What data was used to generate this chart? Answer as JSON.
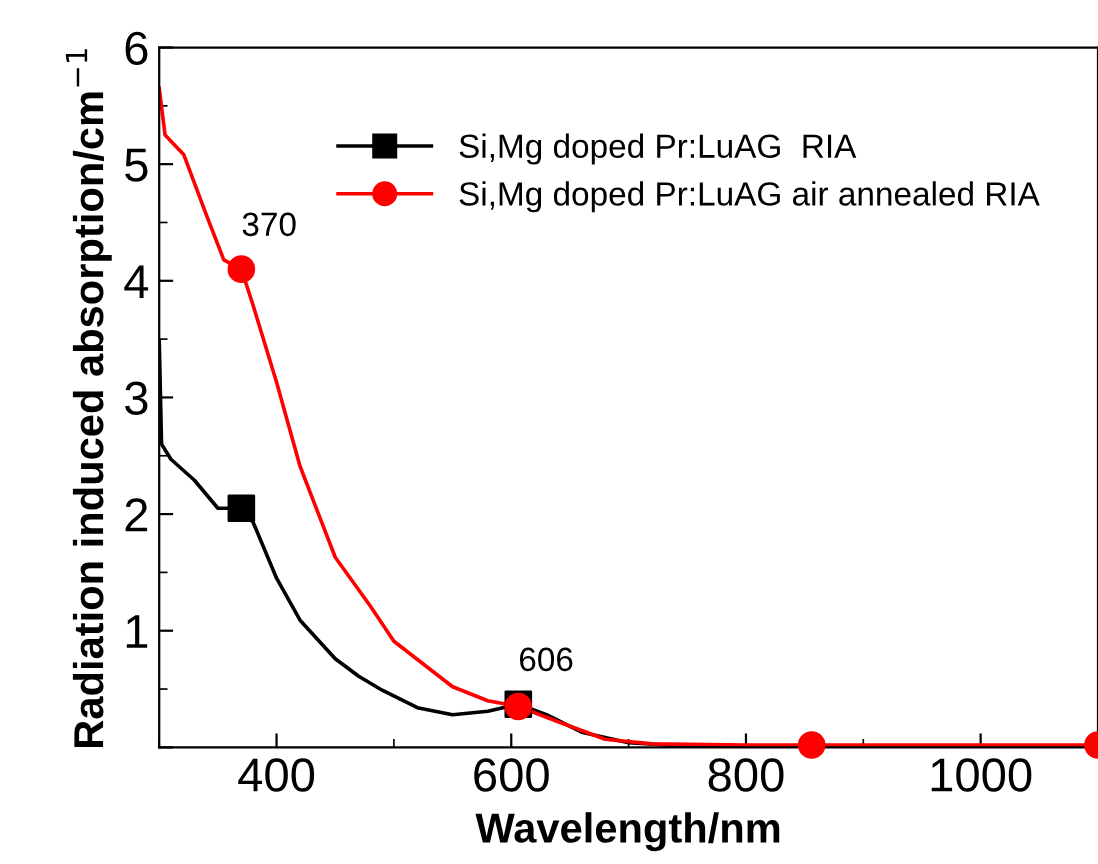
{
  "chart_data": {
    "type": "line",
    "xlabel": "Wavelength/nm",
    "ylabel": "Radiation induced absorption/cm$^{−1}$",
    "xlim": [
      300,
      1100
    ],
    "ylim": [
      0,
      6
    ],
    "xticks": [
      400,
      600,
      800,
      1000
    ],
    "yticks": [
      {
        "value": 0,
        "label": null
      },
      1,
      2,
      3,
      4,
      5,
      6
    ],
    "legend": "top right",
    "grid": false,
    "series": [
      {
        "name": "Si,Mg doped Pr:LuAG  RIA",
        "color": "#000000",
        "x": [
          300,
          302,
          310,
          330,
          350,
          370,
          380,
          400,
          420,
          450,
          470,
          490,
          520,
          550,
          580,
          606,
          630,
          660,
          700,
          750,
          800,
          1100
        ],
        "values": [
          3.49,
          2.6,
          2.47,
          2.29,
          2.05,
          2.05,
          1.93,
          1.45,
          1.09,
          0.76,
          0.61,
          0.49,
          0.34,
          0.28,
          0.31,
          0.37,
          0.28,
          0.13,
          0.04,
          0.01,
          0.0,
          0.0
        ]
      },
      {
        "type": "scatter",
        "color": "#000000",
        "marker": "square",
        "x": [
          370,
          606
        ],
        "values": [
          2.05,
          0.37
        ]
      },
      {
        "name": "Si,Mg doped Pr:LuAG air annealed RIA",
        "color": "#ff0000",
        "x": [
          300,
          305,
          321,
          340,
          355,
          370,
          380,
          400,
          420,
          450,
          480,
          500,
          550,
          580,
          606,
          640,
          680,
          720,
          800,
          1100
        ],
        "values": [
          5.65,
          5.25,
          5.08,
          4.57,
          4.18,
          4.1,
          3.79,
          3.13,
          2.41,
          1.63,
          1.21,
          0.91,
          0.52,
          0.4,
          0.35,
          0.22,
          0.07,
          0.03,
          0.02,
          0.02
        ]
      },
      {
        "type": "scatter",
        "color": "#ff0000",
        "marker": "circle",
        "x": [
          370,
          606,
          856,
          1100
        ],
        "values": [
          4.1,
          0.35,
          0.02,
          0.02
        ]
      }
    ],
    "annotations": [
      {
        "text": "370",
        "x": 370,
        "y": 4.1
      },
      {
        "text": "606",
        "x": 606,
        "y": 0.37
      }
    ]
  }
}
